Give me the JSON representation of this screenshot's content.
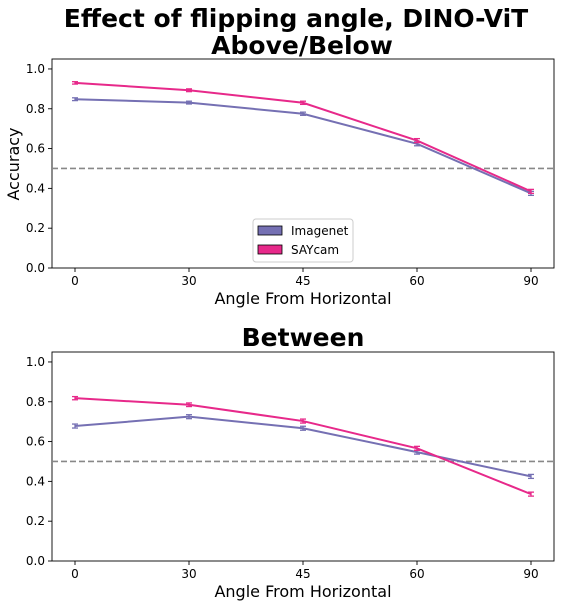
{
  "figure_title_line1": "Effect of flipping angle, DINO-ViT",
  "chart_data": [
    {
      "type": "line",
      "title": "Above/Below",
      "xlabel": "Angle From Horizontal",
      "ylabel": "Accuracy",
      "x": [
        0,
        30,
        45,
        60,
        90
      ],
      "xticks": [
        "0",
        "30",
        "45",
        "60",
        "90"
      ],
      "yticks": [
        "0.0",
        "0.2",
        "0.4",
        "0.6",
        "0.8",
        "1.0"
      ],
      "ylim": [
        0,
        1.05
      ],
      "chance_line": 0.5,
      "legend_position": "lower-center",
      "series": [
        {
          "name": "Imagenet",
          "color": "#7570b3",
          "values": [
            0.848,
            0.831,
            0.775,
            0.624,
            0.375
          ],
          "errors": [
            0.007,
            0.007,
            0.008,
            0.01,
            0.01
          ]
        },
        {
          "name": "SAYcam",
          "color": "#e7298a",
          "values": [
            0.93,
            0.893,
            0.83,
            0.64,
            0.385
          ],
          "errors": [
            0.006,
            0.007,
            0.008,
            0.01,
            0.01
          ]
        }
      ]
    },
    {
      "type": "line",
      "title": "Between",
      "xlabel": "Angle From Horizontal",
      "ylabel": "",
      "x": [
        0,
        30,
        45,
        60,
        90
      ],
      "xticks": [
        "0",
        "30",
        "45",
        "60",
        "90"
      ],
      "yticks": [
        "0.0",
        "0.2",
        "0.4",
        "0.6",
        "0.8",
        "1.0"
      ],
      "ylim": [
        0,
        1.05
      ],
      "chance_line": 0.5,
      "series": [
        {
          "name": "Imagenet",
          "color": "#7570b3",
          "values": [
            0.678,
            0.725,
            0.667,
            0.547,
            0.425
          ],
          "errors": [
            0.01,
            0.01,
            0.01,
            0.01,
            0.01
          ]
        },
        {
          "name": "SAYcam",
          "color": "#e7298a",
          "values": [
            0.818,
            0.785,
            0.703,
            0.566,
            0.336
          ],
          "errors": [
            0.008,
            0.009,
            0.01,
            0.01,
            0.01
          ]
        }
      ]
    }
  ]
}
